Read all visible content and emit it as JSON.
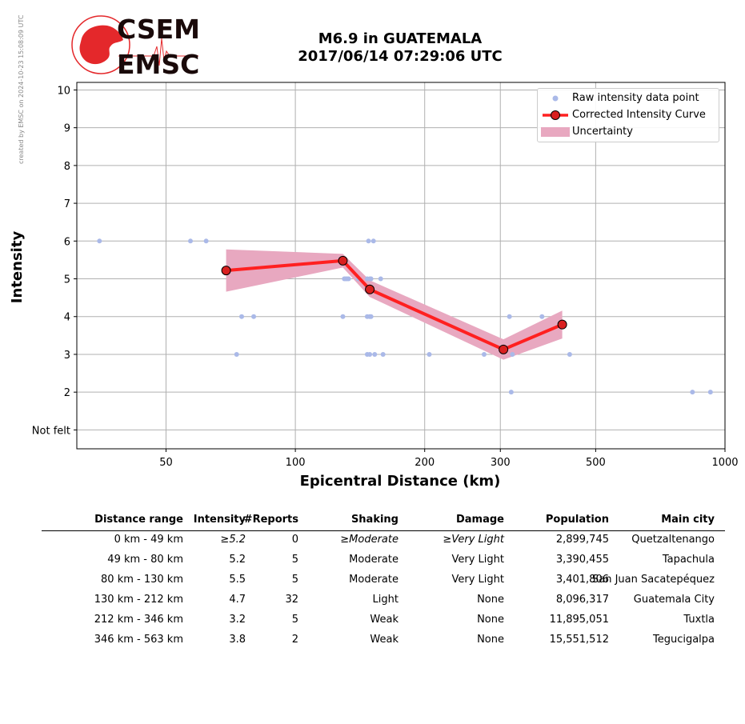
{
  "credit": "created by EMSC on 2024-10-23 15:08:09 UTC",
  "logo": {
    "line1": "CSEM",
    "line2": "EMSC",
    "color": "#e4282b"
  },
  "title": {
    "line1": "M6.9 in GUATEMALA",
    "line2": "2017/06/14 07:29:06 UTC"
  },
  "legend": {
    "raw": "Raw intensity data point",
    "curve": "Corrected Intensity Curve",
    "uncertainty": "Uncertainty"
  },
  "colors": {
    "raw": "#aab9e8",
    "curve": "#ff2020",
    "marker": "#d92020",
    "band": "#e8a8c0",
    "grid": "#b0b0b0"
  },
  "chart_data": {
    "type": "scatter",
    "xlabel": "Epicentral Distance (km)",
    "ylabel": "Intensity",
    "xscale": "log",
    "xlim": [
      31,
      1000
    ],
    "ylim": [
      0.5,
      10.2
    ],
    "x_ticks": [
      50,
      100,
      200,
      300,
      500,
      1000
    ],
    "x_tick_labels": [
      "50",
      "100",
      "200",
      "300",
      "500",
      "1000"
    ],
    "y_ticks": [
      1,
      2,
      3,
      4,
      5,
      6,
      7,
      8,
      9,
      10
    ],
    "y_tick_labels": [
      "Not felt",
      "2",
      "3",
      "4",
      "5",
      "6",
      "7",
      "8",
      "9",
      "10"
    ],
    "grid": true,
    "legend_position": "top-right",
    "series": [
      {
        "name": "Raw intensity data point",
        "kind": "scatter",
        "points": [
          [
            35,
            6
          ],
          [
            57,
            6
          ],
          [
            62,
            6
          ],
          [
            75,
            4
          ],
          [
            80,
            4
          ],
          [
            73,
            3
          ],
          [
            129,
            4
          ],
          [
            130,
            5
          ],
          [
            131,
            5
          ],
          [
            132,
            5
          ],
          [
            133,
            5
          ],
          [
            140,
            5
          ],
          [
            148,
            6
          ],
          [
            152,
            6
          ],
          [
            147,
            5
          ],
          [
            149,
            5
          ],
          [
            150,
            5
          ],
          [
            158,
            5
          ],
          [
            147,
            4
          ],
          [
            149,
            4
          ],
          [
            150,
            4
          ],
          [
            147,
            3
          ],
          [
            149,
            3
          ],
          [
            153,
            3
          ],
          [
            160,
            3
          ],
          [
            205,
            3
          ],
          [
            275,
            3
          ],
          [
            315,
            4
          ],
          [
            318,
            2
          ],
          [
            320,
            3
          ],
          [
            375,
            4
          ],
          [
            435,
            3
          ],
          [
            840,
            2
          ],
          [
            925,
            2
          ]
        ]
      },
      {
        "name": "Corrected Intensity Curve",
        "kind": "line",
        "points": [
          [
            69,
            5.22
          ],
          [
            129,
            5.48
          ],
          [
            149,
            4.72
          ],
          [
            305,
            3.13
          ],
          [
            418,
            3.79
          ]
        ]
      },
      {
        "name": "Uncertainty",
        "kind": "band",
        "upper": [
          [
            69,
            5.78
          ],
          [
            129,
            5.66
          ],
          [
            149,
            4.96
          ],
          [
            305,
            3.4
          ],
          [
            418,
            4.16
          ]
        ],
        "lower": [
          [
            69,
            4.66
          ],
          [
            129,
            5.3
          ],
          [
            149,
            4.52
          ],
          [
            305,
            2.86
          ],
          [
            418,
            3.42
          ]
        ]
      }
    ]
  },
  "table": {
    "headers": [
      "Distance range",
      "Intensity",
      "#Reports",
      "Shaking",
      "Damage",
      "Population",
      "Main city"
    ],
    "rows": [
      [
        "0 km -   49 km",
        "≥5.2",
        "0",
        "≥Moderate",
        "≥Very Light",
        "2,899,745",
        "Quetzaltenango"
      ],
      [
        "49 km -   80 km",
        "5.2",
        "5",
        "Moderate",
        "Very Light",
        "3,390,455",
        "Tapachula"
      ],
      [
        "80 km -  130 km",
        "5.5",
        "5",
        "Moderate",
        "Very Light",
        "3,401,806",
        "San Juan Sacatepéquez"
      ],
      [
        "130 km -  212 km",
        "4.7",
        "32",
        "Light",
        "None",
        "8,096,317",
        "Guatemala City"
      ],
      [
        "212 km -  346 km",
        "3.2",
        "5",
        "Weak",
        "None",
        "11,895,051",
        "Tuxtla"
      ],
      [
        "346 km -  563 km",
        "3.8",
        "2",
        "Weak",
        "None",
        "15,551,512",
        "Tegucigalpa"
      ]
    ]
  }
}
